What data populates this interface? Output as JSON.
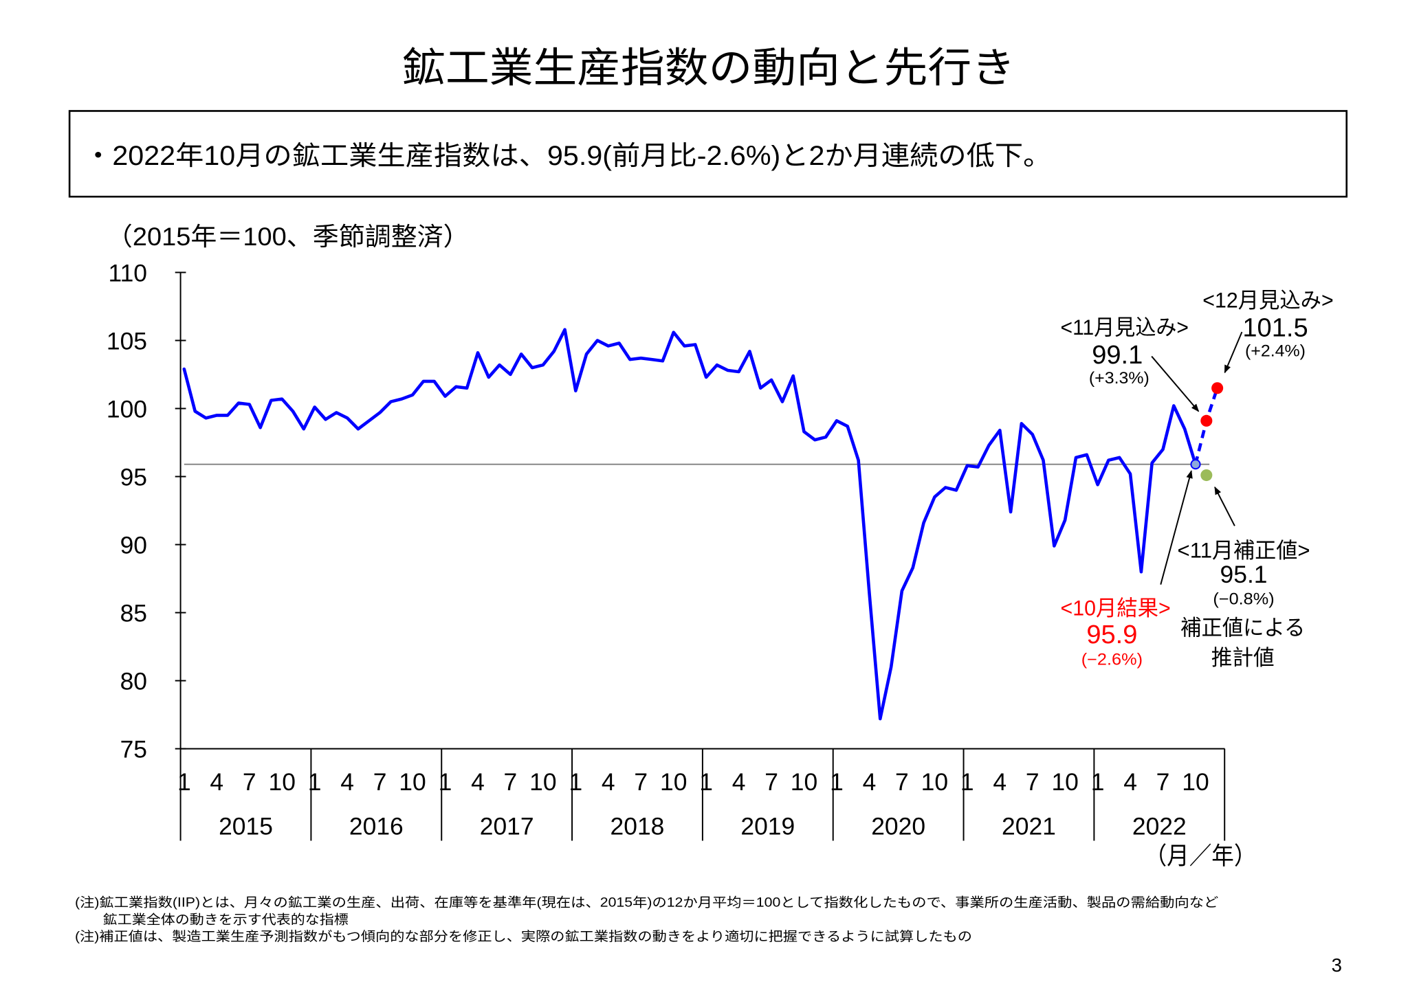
{
  "page": {
    "title": "鉱工業生産指数の動向と先行き",
    "summary": "・2022年10月の鉱工業生産指数は、95.9(前月比-2.6%)と2か月連続の低下。",
    "page_number": "3"
  },
  "notes": {
    "line1": "(注)鉱工業指数(IIP)とは、月々の鉱工業の生産、出荷、在庫等を基準年(現在は、2015年)の12か月平均＝100として指数化したもので、事業所の生産活動、製品の需給動向など",
    "line2": "鉱工業全体の動きを示す代表的な指標",
    "line3": "(注)補正値は、製造工業生産予測指数がもつ傾向的な部分を修正し、実際の鉱工業指数の動きをより適切に把握できるように試算したもの"
  },
  "chart_data": {
    "type": "line",
    "grid": false,
    "y_axis": {
      "unit_note": "（2015年＝100、季節調整済）",
      "range": [
        75,
        110
      ],
      "ticks": [
        110,
        105,
        100,
        95,
        90,
        85,
        80,
        75
      ]
    },
    "x_axis": {
      "label": "（月／年）",
      "month_ticks": [
        "1",
        "4",
        "7",
        "10"
      ],
      "years": [
        "2015",
        "2016",
        "2017",
        "2018",
        "2019",
        "2020",
        "2021",
        "2022"
      ]
    },
    "series": [
      {
        "color": "#0000ff",
        "values_by_year": [
          {
            "year": "2015",
            "values": [
              102.9,
              99.8,
              99.3,
              99.5,
              99.5,
              100.4,
              100.3,
              98.6,
              100.6,
              100.7,
              99.8,
              98.5
            ]
          },
          {
            "year": "2016",
            "values": [
              100.1,
              99.2,
              99.7,
              99.3,
              98.5,
              99.1,
              99.7,
              100.5,
              100.7,
              101.0,
              102.0,
              102.0
            ]
          },
          {
            "year": "2017",
            "values": [
              100.9,
              101.6,
              101.5,
              104.1,
              102.3,
              103.2,
              102.5,
              104.0,
              103.0,
              103.2,
              104.2,
              105.8
            ]
          },
          {
            "year": "2018",
            "values": [
              101.3,
              104.0,
              105.0,
              104.6,
              104.8,
              103.6,
              103.7,
              103.6,
              103.5,
              105.6,
              104.6,
              104.7
            ]
          },
          {
            "year": "2019",
            "values": [
              102.3,
              103.2,
              102.8,
              102.7,
              104.2,
              101.5,
              102.1,
              100.5,
              102.4,
              98.3,
              97.7,
              97.9
            ]
          },
          {
            "year": "2020",
            "values": [
              99.1,
              98.7,
              96.2,
              86.5,
              77.2,
              81.0,
              86.6,
              88.3,
              91.6,
              93.5,
              94.2,
              94.0
            ]
          },
          {
            "year": "2021",
            "values": [
              95.8,
              95.7,
              97.3,
              98.4,
              92.4,
              98.9,
              98.1,
              96.2,
              89.9,
              91.8,
              96.4,
              96.6
            ]
          },
          {
            "year": "2022",
            "values": [
              94.4,
              96.2,
              96.4,
              95.2,
              88.0,
              96.0,
              97.0,
              100.2,
              98.5,
              95.9
            ]
          }
        ]
      }
    ],
    "reference_line": {
      "value": 95.9,
      "color": "#808080"
    },
    "projection_line": {
      "color": "#0000ff",
      "dashed": true,
      "points": [
        {
          "year": "2022",
          "month": 10,
          "value": 95.9
        },
        {
          "year": "2022",
          "month": 11,
          "value": 99.1
        },
        {
          "year": "2022",
          "month": 12,
          "value": 101.5
        }
      ]
    },
    "markers": [
      {
        "year": "2022",
        "month": 10,
        "value": 95.9,
        "color": "#8ea9db",
        "border": "#0000ff"
      },
      {
        "year": "2022",
        "month": 11,
        "value": 99.1,
        "color": "#ff0000"
      },
      {
        "year": "2022",
        "month": 12,
        "value": 101.5,
        "color": "#ff0000"
      },
      {
        "year": "2022",
        "month": 11,
        "value": 95.1,
        "color": "#9bbb59"
      }
    ],
    "annotations": {
      "dec_forecast": {
        "heading": "<12月見込み>",
        "value": "101.5",
        "change": "(+2.4%)"
      },
      "nov_forecast": {
        "heading": "<11月見込み>",
        "value": "99.1",
        "change": "(+3.3%)"
      },
      "nov_corrected": {
        "heading": "<11月補正値>",
        "value": "95.1",
        "change": "(−0.8%)",
        "note_line1": "補正値による",
        "note_line2": "推計値"
      },
      "oct_result": {
        "heading": "<10月結果>",
        "value": "95.9",
        "change": "(−2.6%)",
        "color": "#ff0000"
      }
    }
  }
}
